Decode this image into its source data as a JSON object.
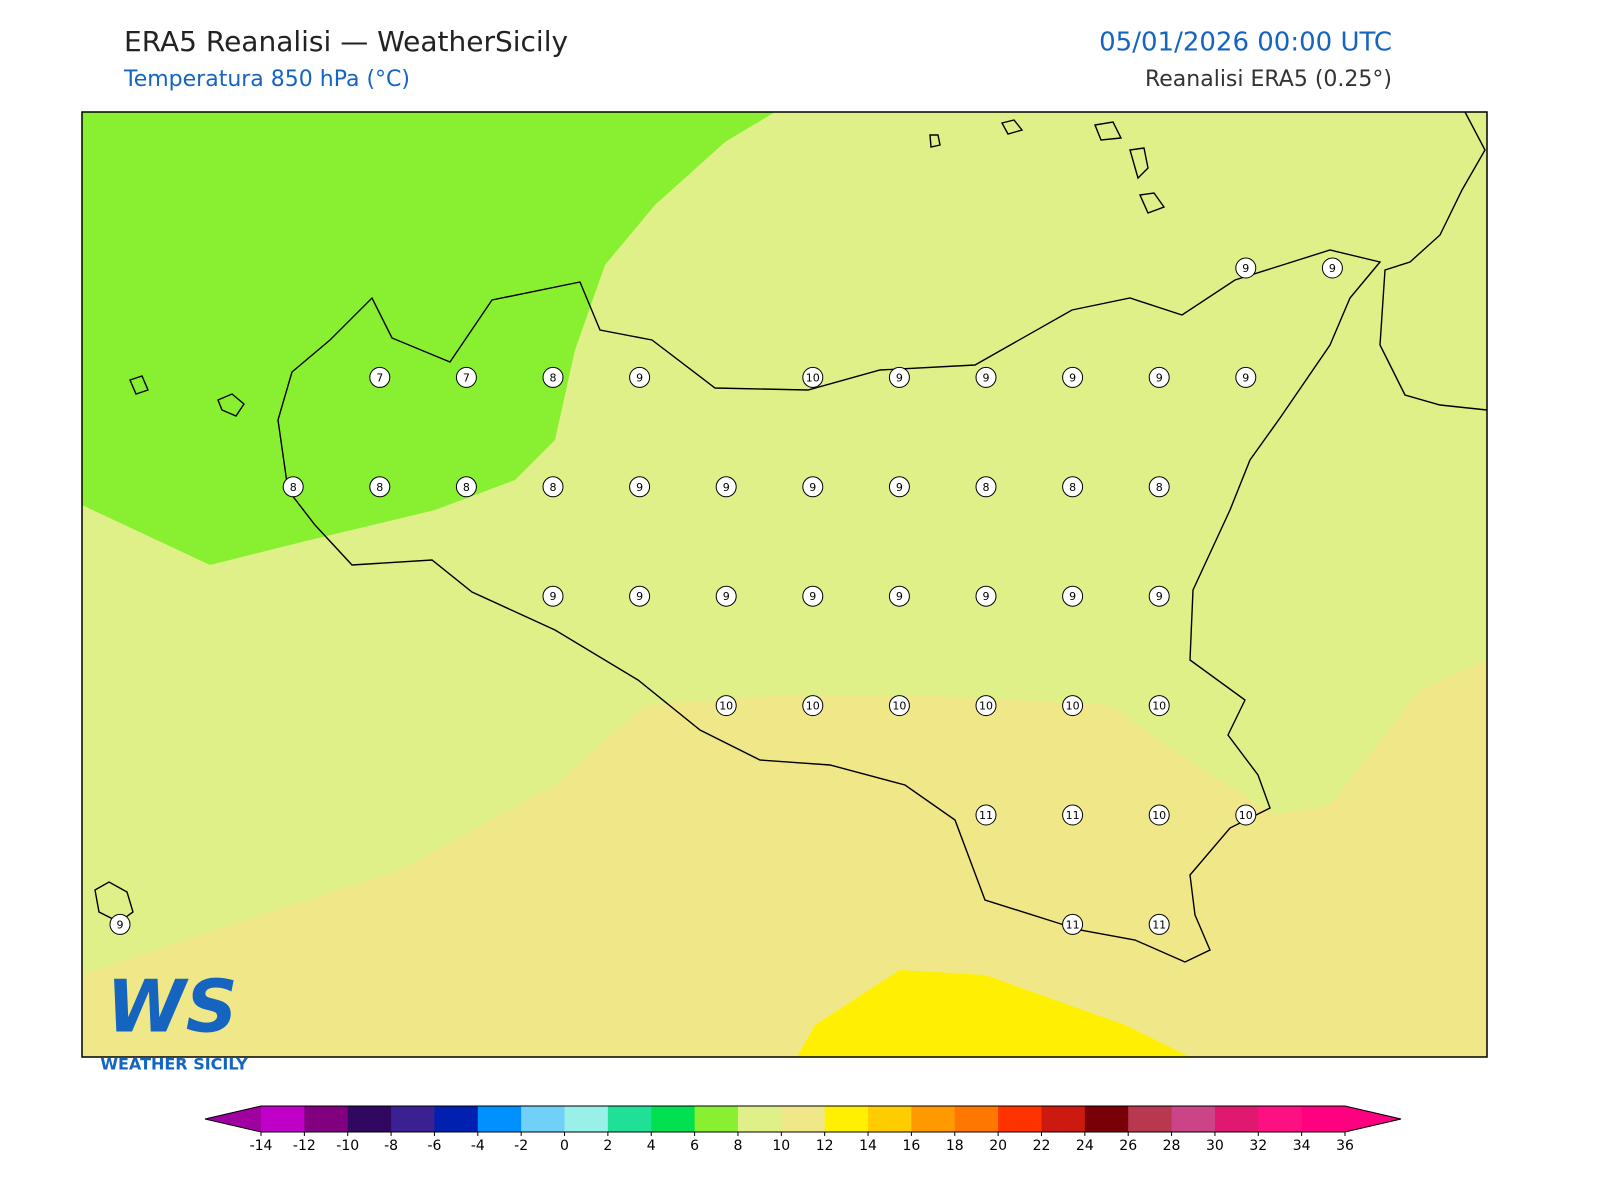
{
  "header": {
    "title": "ERA5 Reanalisi — WeatherSicily",
    "subtitle": "Temperatura 850 hPa (°C)",
    "datetime": "05/01/2026 00:00 UTC",
    "source": "Reanalisi ERA5 (0.25°)"
  },
  "map": {
    "point_values": [
      [
        null,
        null,
        null,
        null,
        null,
        null,
        null,
        null,
        null,
        null,
        null,
        null,
        null,
        9,
        9
      ],
      [
        null,
        null,
        null,
        7,
        7,
        8,
        9,
        null,
        10,
        9,
        9,
        9,
        9,
        9,
        null
      ],
      [
        null,
        null,
        8,
        8,
        8,
        8,
        9,
        9,
        9,
        9,
        8,
        8,
        8,
        null,
        null
      ],
      [
        null,
        null,
        null,
        null,
        null,
        9,
        9,
        9,
        9,
        9,
        9,
        9,
        9,
        null,
        null
      ],
      [
        null,
        null,
        null,
        null,
        null,
        null,
        null,
        10,
        10,
        10,
        10,
        10,
        10,
        null,
        null
      ],
      [
        null,
        null,
        null,
        null,
        null,
        null,
        null,
        null,
        null,
        null,
        11,
        11,
        10,
        10,
        null
      ],
      [
        9,
        null,
        null,
        null,
        null,
        null,
        null,
        null,
        null,
        null,
        null,
        11,
        11,
        null,
        null
      ]
    ]
  },
  "colorbar": {
    "ticks": [
      -14,
      -12,
      -10,
      -8,
      -6,
      -4,
      -2,
      0,
      2,
      4,
      6,
      8,
      10,
      12,
      14,
      16,
      18,
      20,
      22,
      24,
      26,
      28,
      30,
      32,
      34,
      36
    ],
    "colors": [
      "#c000c8",
      "#800080",
      "#300860",
      "#3a2090",
      "#0020b0",
      "#0090ff",
      "#70d0f8",
      "#98f0e8",
      "#20e098",
      "#00e050",
      "#88f030",
      "#e0f088",
      "#f0e888",
      "#ffef00",
      "#ffcc00",
      "#ff9900",
      "#ff7700",
      "#ff3300",
      "#cc1a10",
      "#7a0008",
      "#b83850",
      "#cc4488",
      "#e01870",
      "#ff1080",
      "#ff0080"
    ],
    "under_color": "#a000a0",
    "over_color": "#ff0080"
  },
  "logo": {
    "mark": "WS",
    "text": "WEATHER SICILY"
  }
}
